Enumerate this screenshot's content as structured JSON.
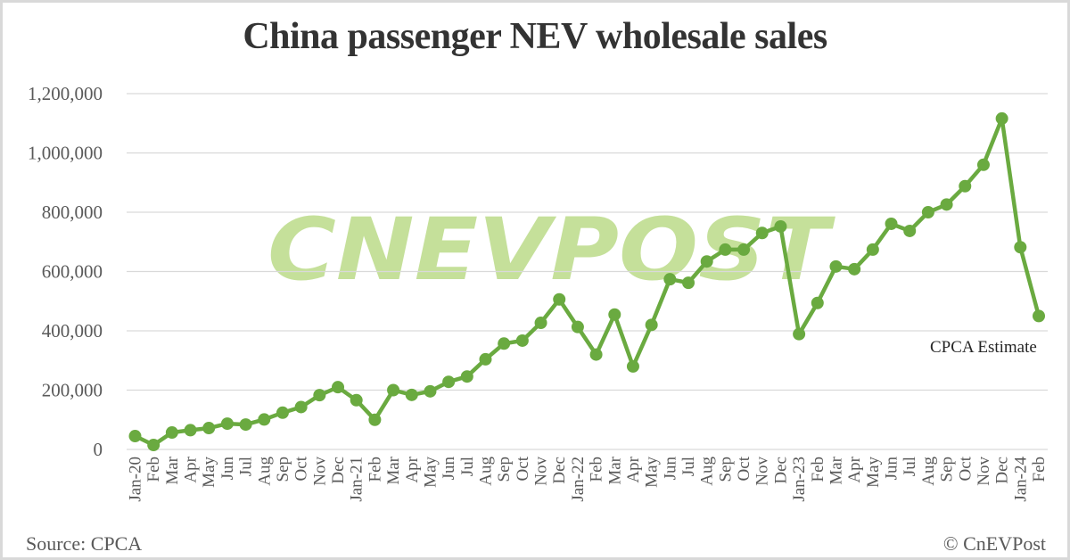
{
  "header": {
    "title": "China passenger NEV wholesale sales"
  },
  "footer": {
    "source": "Source: CPCA",
    "copyright": "© CnEVPost"
  },
  "watermark": {
    "text": "CNEVPOST",
    "color": "#c5e09a"
  },
  "colors": {
    "line": "#6aaa40",
    "marker": "#6aaa40",
    "grid": "#d9d9d9",
    "axis_text": "#595959"
  },
  "chart_data": {
    "type": "line",
    "title": "China passenger NEV wholesale sales",
    "xlabel": "",
    "ylabel": "",
    "ylim": [
      0,
      1200000
    ],
    "yticks": [
      0,
      200000,
      400000,
      600000,
      800000,
      1000000,
      1200000
    ],
    "ytick_labels": [
      "0",
      "200,000",
      "400,000",
      "600,000",
      "800,000",
      "1,000,000",
      "1,200,000"
    ],
    "grid": true,
    "legend": null,
    "annotations": [
      {
        "text": "CPCA Estimate",
        "x": "Feb-24"
      }
    ],
    "categories": [
      "Jan-20",
      "Feb",
      "Mar",
      "Apr",
      "May",
      "Jun",
      "Jul",
      "Aug",
      "Sep",
      "Oct",
      "Nov",
      "Dec",
      "Jan-21",
      "Feb",
      "Mar",
      "Apr",
      "May",
      "Jun",
      "Jul",
      "Aug",
      "Sep",
      "Oct",
      "Nov",
      "Dec",
      "Jan-22",
      "Feb",
      "Mar",
      "Apr",
      "May",
      "Jun",
      "Jul",
      "Aug",
      "Sep",
      "Oct",
      "Nov",
      "Dec",
      "Jan-23",
      "Feb",
      "Mar",
      "Apr",
      "May",
      "Jun",
      "Jul",
      "Aug",
      "Sep",
      "Oct",
      "Nov",
      "Dec",
      "Jan-24",
      "Feb"
    ],
    "series": [
      {
        "name": "Passenger NEV wholesale sales",
        "values": [
          45000,
          15000,
          57000,
          65000,
          72000,
          87000,
          84000,
          101000,
          124000,
          143000,
          183000,
          210000,
          166000,
          100000,
          200000,
          184000,
          196000,
          228000,
          246000,
          304000,
          357000,
          367000,
          427000,
          506000,
          413000,
          320000,
          455000,
          280000,
          420000,
          574000,
          562000,
          634000,
          674000,
          674000,
          730000,
          752000,
          389000,
          494000,
          617000,
          608000,
          674000,
          761000,
          737000,
          800000,
          826000,
          888000,
          960000,
          1116000,
          682000,
          450000
        ]
      }
    ]
  }
}
